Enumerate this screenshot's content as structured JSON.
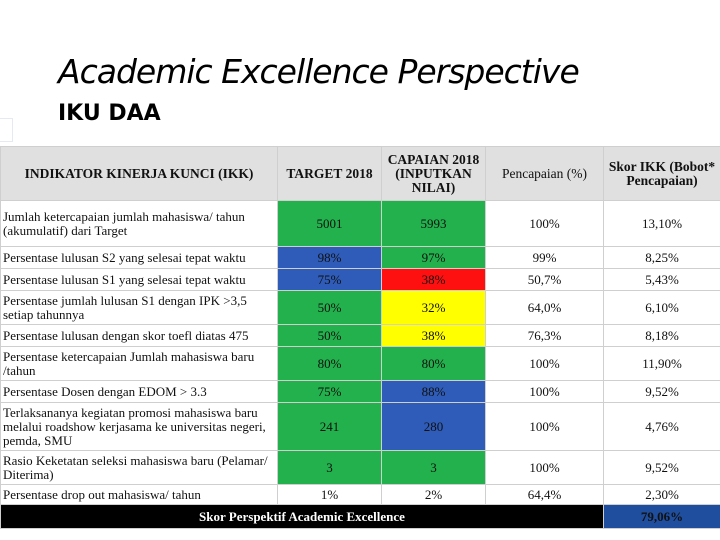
{
  "slide": {
    "title": "Academic Excellence Perspective",
    "subtitle": "IKU DAA"
  },
  "table": {
    "headers": {
      "indicator": "INDIKATOR KINERJA KUNCI (IKK)",
      "target": "TARGET 2018",
      "achievement": "CAPAIAN 2018 (INPUTKAN NILAI)",
      "percent": "Pencapaian (%)",
      "score": "Skor IKK (Bobot* Pencapaian)"
    },
    "rows": [
      {
        "indicator": "Jumlah ketercapaian jumlah mahasiswa/ tahun (akumulatif) dari Target",
        "target": "5001",
        "achievement": "5993",
        "achievement_color": "green",
        "percent": "100%",
        "score": "13,10%"
      },
      {
        "indicator": "Persentase lulusan S2 yang selesai tepat waktu",
        "target": "98%",
        "achievement": "97%",
        "achievement_color": "green",
        "percent": "99%",
        "score": "8,25%"
      },
      {
        "indicator": "Persentase lulusan S1 yang selesai tepat waktu",
        "target": "75%",
        "achievement": "38%",
        "achievement_color": "red",
        "percent": "50,7%",
        "score": "5,43%"
      },
      {
        "indicator": "Persentase jumlah lulusan S1 dengan IPK >3,5 setiap tahunnya",
        "target": "50%",
        "achievement": "32%",
        "achievement_color": "yellow",
        "percent": "64,0%",
        "score": "6,10%"
      },
      {
        "indicator": "Persentase lulusan dengan skor toefl diatas 475",
        "target": "50%",
        "achievement": "38%",
        "achievement_color": "yellow",
        "percent": "76,3%",
        "score": "8,18%"
      },
      {
        "indicator": "Persentase ketercapaian Jumlah mahasiswa baru /tahun",
        "target": "80%",
        "achievement": "80%",
        "achievement_color": "green",
        "percent": "100%",
        "score": "11,90%"
      },
      {
        "indicator": "Persentase Dosen dengan EDOM > 3.3",
        "target": "75%",
        "achievement": "88%",
        "achievement_color": "blue",
        "percent": "100%",
        "score": "9,52%"
      },
      {
        "indicator": "Terlaksananya kegiatan promosi mahasiswa baru melalui roadshow kerjasama ke universitas negeri, pemda, SMU",
        "target": "241",
        "achievement": "280",
        "achievement_color": "blue",
        "percent": "100%",
        "score": "4,76%"
      },
      {
        "indicator": "Rasio Keketatan seleksi mahasiswa baru (Pelamar/ Diterima)",
        "target": "3",
        "achievement": "3",
        "achievement_color": "green",
        "percent": "100%",
        "score": "9,52%"
      },
      {
        "indicator": "Persentase drop out mahasiswa/ tahun",
        "target": "1%",
        "achievement": "2%",
        "achievement_color": "white",
        "percent": "64,4%",
        "score": "2,30%"
      }
    ],
    "footer": {
      "label": "Skor Perspektif Academic Excellence",
      "total": "79,06%"
    }
  }
}
